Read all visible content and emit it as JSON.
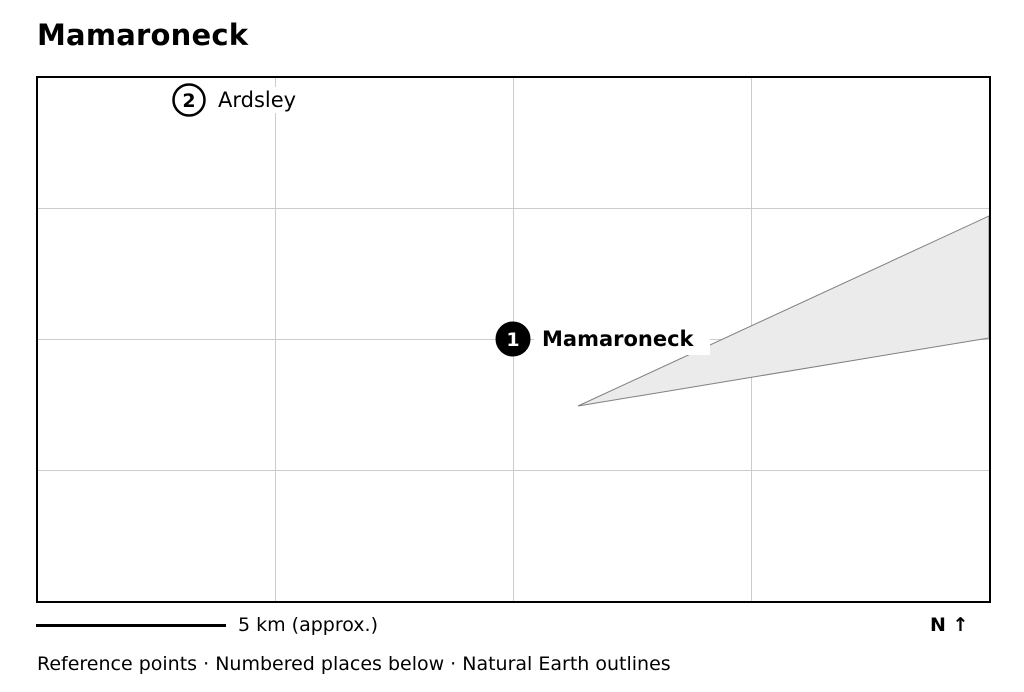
{
  "title": "Mamaroneck",
  "map": {
    "places": [
      {
        "number": "1",
        "name": "Mamaroneck",
        "primary": true
      },
      {
        "number": "2",
        "name": "Ardsley",
        "primary": false
      }
    ],
    "colors": {
      "grid": "#cccccc",
      "land_fill": "#ebebeb",
      "land_stroke": "#808080",
      "frame": "#000000",
      "marker_primary": "#000000",
      "marker_secondary": "#ffffff"
    },
    "grid": true
  },
  "scale_bar": {
    "label": "5 km (approx.)"
  },
  "north_arrow": {
    "label": "N ↑"
  },
  "footer": {
    "text": "Reference points · Numbered places below · Natural Earth outlines"
  }
}
